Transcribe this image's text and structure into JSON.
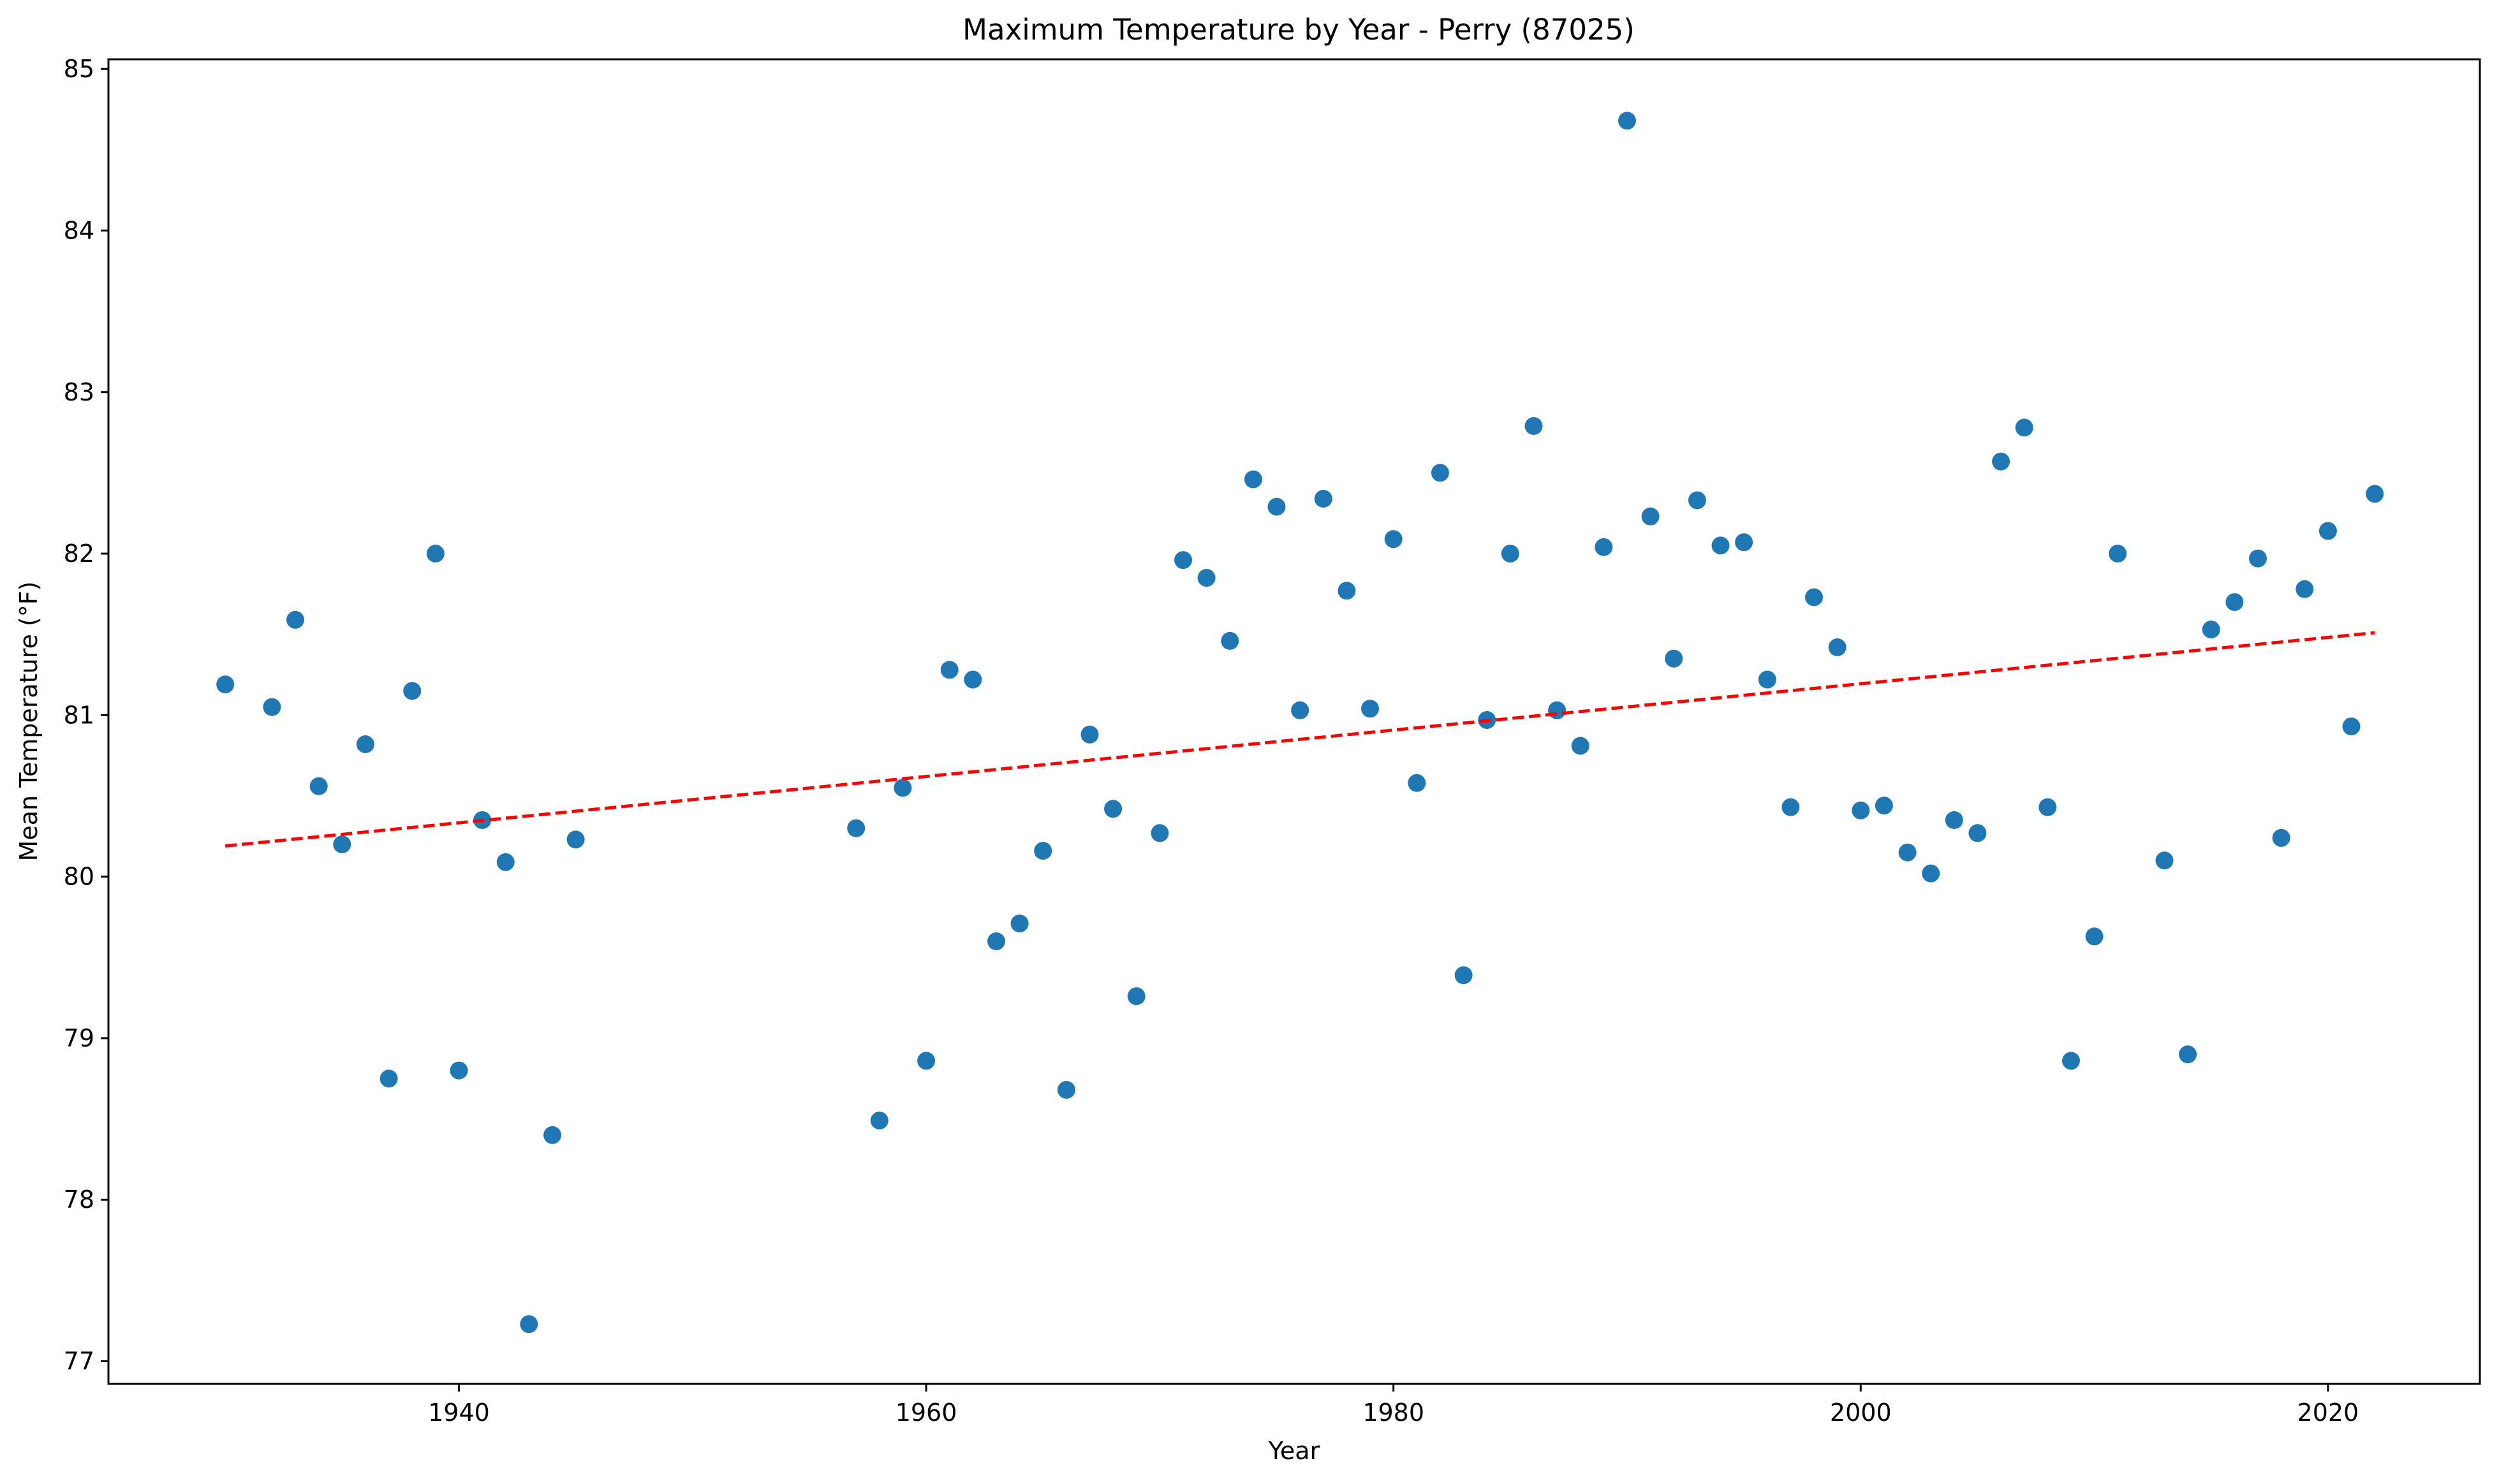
{
  "chart_data": {
    "type": "scatter",
    "title": "Maximum Temperature by Year - Perry (87025)",
    "xlabel": "Year",
    "ylabel": "Mean Temperature (°F)",
    "xlim": [
      1925,
      2026.5
    ],
    "ylim": [
      76.86,
      85.06
    ],
    "xticks": [
      1940,
      1960,
      1980,
      2000,
      2020
    ],
    "yticks": [
      77,
      78,
      79,
      80,
      81,
      82,
      83,
      84,
      85
    ],
    "grid": false,
    "legend": "none",
    "point_color": "#1f77b4",
    "trend_color": "#ff0000",
    "series": [
      {
        "x": [
          1930,
          1932,
          1933,
          1934,
          1935,
          1936,
          1937,
          1938,
          1939,
          1940,
          1941,
          1942,
          1943,
          1944,
          1945,
          1957,
          1958,
          1959,
          1960,
          1961,
          1962,
          1963,
          1964,
          1965,
          1966,
          1967,
          1968,
          1969,
          1970,
          1971,
          1972,
          1973,
          1974,
          1975,
          1976,
          1977,
          1978,
          1979,
          1980,
          1981,
          1982,
          1983,
          1984,
          1985,
          1986,
          1987,
          1988,
          1989,
          1990,
          1991,
          1992,
          1993,
          1994,
          1995,
          1996,
          1997,
          1998,
          1999,
          2000,
          2001,
          2002,
          2003,
          2004,
          2005,
          2006,
          2007,
          2008,
          2009,
          2010,
          2011,
          2013,
          2014,
          2015,
          2016,
          2017,
          2018,
          2019,
          2020,
          2021,
          2022
        ],
        "y": [
          81.19,
          81.05,
          81.59,
          80.56,
          80.2,
          80.82,
          78.75,
          81.15,
          82.0,
          78.8,
          80.35,
          80.09,
          77.23,
          78.4,
          80.23,
          80.3,
          78.49,
          80.55,
          78.86,
          81.28,
          81.22,
          79.6,
          79.71,
          80.16,
          78.68,
          80.88,
          80.42,
          79.26,
          80.27,
          81.96,
          81.85,
          81.46,
          82.46,
          82.29,
          81.03,
          82.34,
          81.77,
          81.04,
          82.09,
          80.58,
          82.5,
          79.39,
          80.97,
          82.0,
          82.79,
          81.03,
          80.81,
          82.04,
          84.68,
          82.23,
          81.35,
          82.33,
          82.05,
          82.07,
          81.22,
          80.43,
          81.73,
          81.42,
          80.41,
          80.44,
          80.15,
          80.02,
          80.35,
          80.27,
          82.57,
          82.78,
          80.43,
          78.86,
          79.63,
          82.0,
          80.1,
          78.9,
          81.53,
          81.7,
          81.97,
          80.24,
          81.78,
          82.14,
          80.93,
          82.37
        ]
      }
    ],
    "trend_line": {
      "x": [
        1930,
        2022
      ],
      "y": [
        80.19,
        81.51
      ]
    }
  }
}
